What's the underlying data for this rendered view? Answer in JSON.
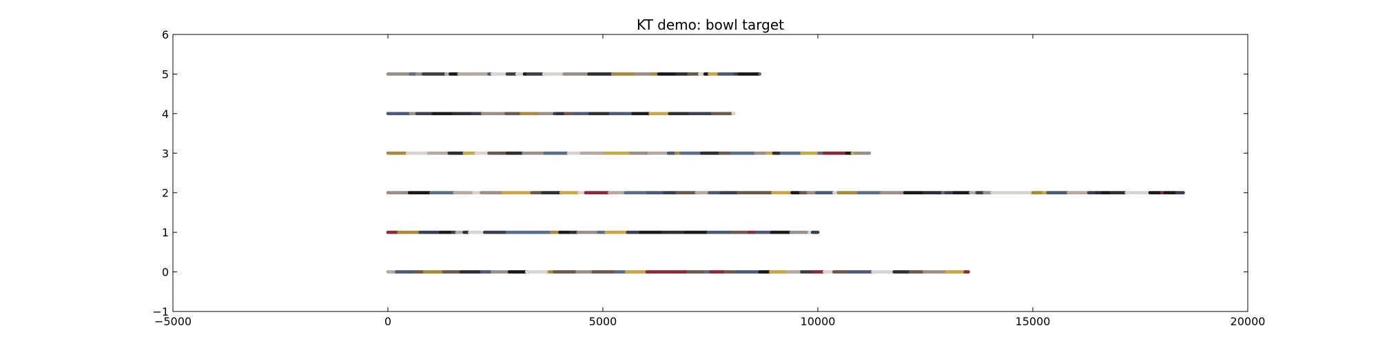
{
  "chart_data": {
    "type": "scatter",
    "title": "KT demo: bowl target",
    "xlabel": "",
    "ylabel": "",
    "xlim": [
      -5000,
      20000
    ],
    "ylim": [
      -1,
      6
    ],
    "x_ticks": [
      -5000,
      0,
      5000,
      10000,
      15000,
      20000
    ],
    "y_ticks": [
      -1,
      0,
      1,
      2,
      3,
      4,
      5,
      6
    ],
    "x_tick_labels": [
      "−5000",
      "0",
      "5000",
      "10000",
      "15000",
      "20000"
    ],
    "y_tick_labels": [
      "−1",
      "0",
      "1",
      "2",
      "3",
      "4",
      "5",
      "6"
    ],
    "grid": false,
    "legend": "none",
    "series": [
      {
        "y": 0,
        "x_start": 0,
        "x_end": 13500
      },
      {
        "y": 1,
        "x_start": 0,
        "x_end": 10000
      },
      {
        "y": 2,
        "x_start": 0,
        "x_end": 18500
      },
      {
        "y": 3,
        "x_start": 0,
        "x_end": 11200
      },
      {
        "y": 4,
        "x_start": 0,
        "x_end": 8050
      },
      {
        "y": 5,
        "x_start": 0,
        "x_end": 8650
      }
    ],
    "point_colors": [
      "#1a1a1a",
      "#3b3f4f",
      "#4a5a78",
      "#8c2a3a",
      "#c9a646",
      "#d8d4d0",
      "#6b5a4a",
      "#2f2f36",
      "#9a8f86",
      "#a88a3a",
      "#5a6e8a",
      "#b7a9a0"
    ]
  }
}
